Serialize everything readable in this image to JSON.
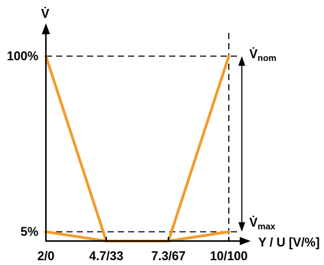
{
  "chart_data": {
    "type": "line",
    "y_axis_title": "V̇",
    "x_axis_title": "Y / U [V/%]",
    "x_ticks": [
      "2/0",
      "4.7/33",
      "7.3/67",
      "10/100"
    ],
    "y_ticks": [
      "5%",
      "100%"
    ],
    "annotations": {
      "top": {
        "base": "V̇",
        "sub": "nom"
      },
      "bottom": {
        "base": "V̇",
        "sub": "max"
      }
    },
    "accent_color": "#f39a2b",
    "xlim": [
      0,
      100
    ],
    "ylim": [
      0,
      100
    ],
    "x_tick_values": [
      0,
      33,
      67,
      100
    ],
    "y_tick_values": [
      5,
      100
    ],
    "series": [
      {
        "x": [
          0,
          33,
          67,
          100
        ],
        "y": [
          100,
          0,
          0,
          100
        ]
      },
      {
        "x": [
          0,
          33,
          67,
          100
        ],
        "y": [
          5,
          0,
          0,
          5
        ]
      }
    ]
  }
}
